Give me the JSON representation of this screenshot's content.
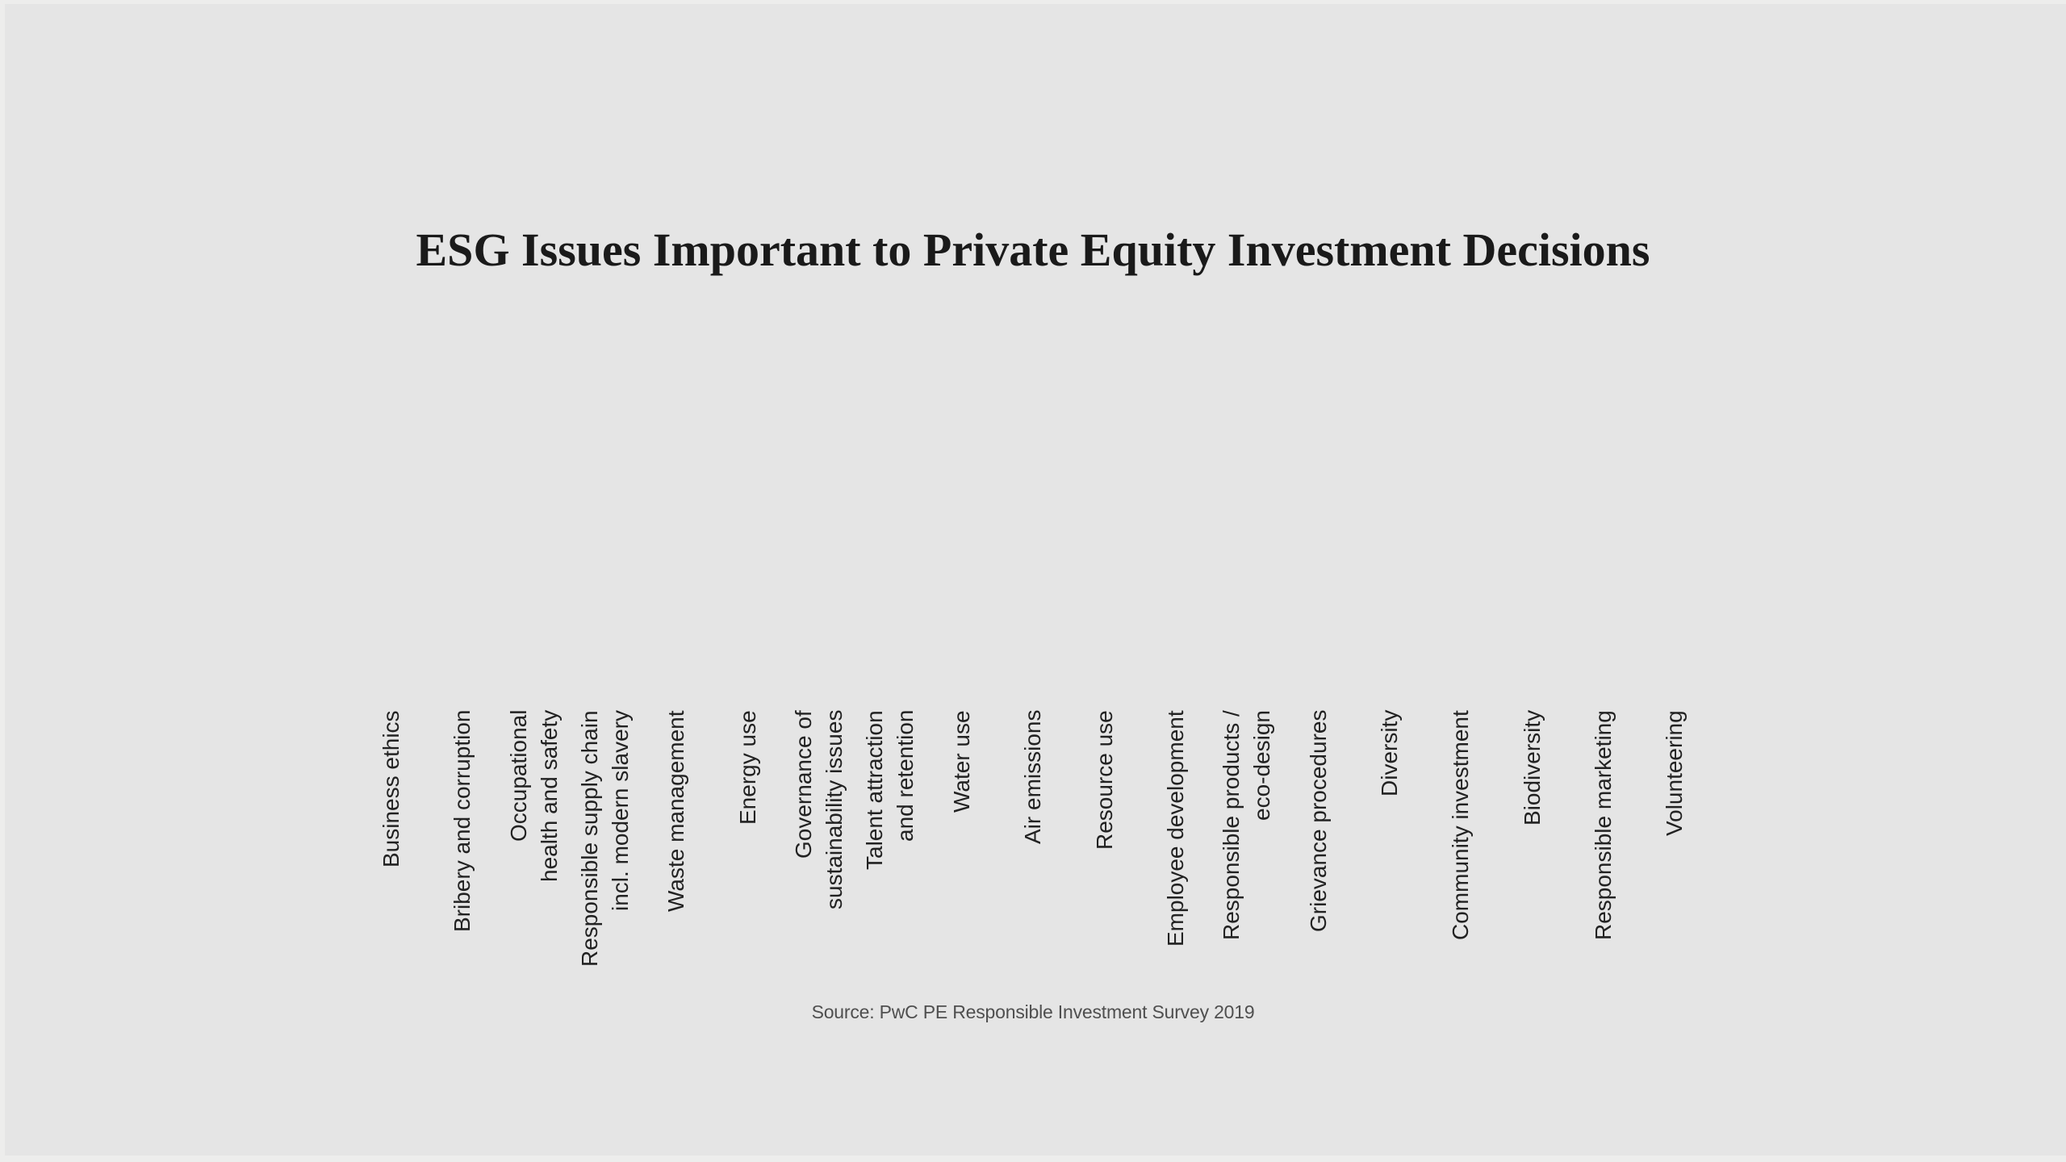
{
  "title": "ESG Issues Important to Private Equity Investment Decisions",
  "source": "Source: PwC PE Responsible Investment Survey 2019",
  "colors": {
    "background": "#e5e5e5",
    "title_text": "#1a1a1a",
    "label_text": "#222222",
    "source_text": "#4f4f4f"
  },
  "chart_data": {
    "type": "bar",
    "title": "ESG Issues Important to Private Equity Investment Decisions",
    "categories": [
      "Business ethics",
      "Bribery and corruption",
      "Occupational\nhealth and safety",
      "Responsible supply chain\nincl. modern slavery",
      "Waste management",
      "Energy use",
      "Governance of\nsustainability issues",
      "Talent attraction\nand retention",
      "Water use",
      "Air emissions",
      "Resource use",
      "Employee development",
      "Responsible products /\neco-design",
      "Grievance procedures",
      "Diversity",
      "Community investment",
      "Biodiversity",
      "Responsible marketing",
      "Volunteering"
    ],
    "series": [],
    "values_visible": false,
    "xlabel": "",
    "ylabel": "",
    "legend": "none",
    "grid": "off",
    "label_rotation": 90,
    "note": "Plot area is empty in this frame: no bars, axis lines, ticks or value labels are rendered; only the title, rotated category labels and source caption are visible."
  }
}
